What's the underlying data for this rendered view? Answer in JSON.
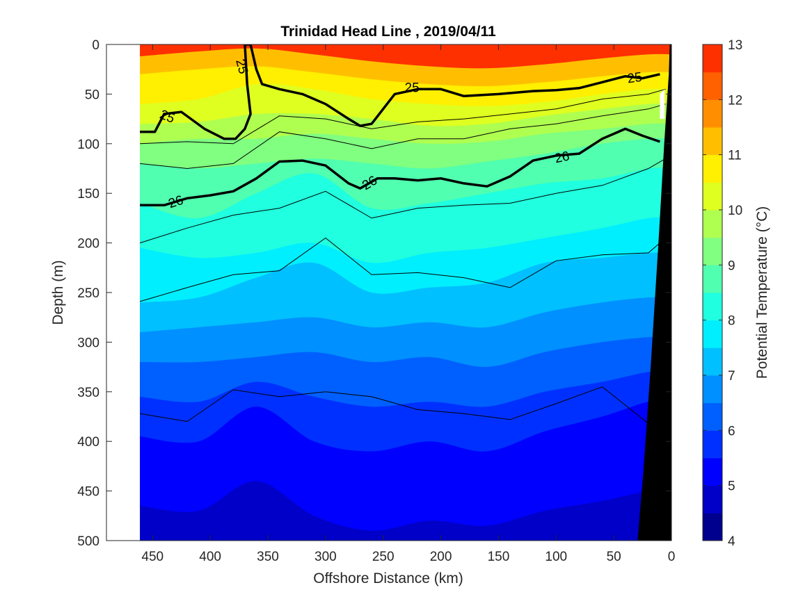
{
  "chart_data": {
    "type": "heatmap",
    "title": "Trinidad Head Line , 2019/04/11",
    "xlabel": "Offshore Distance (km)",
    "ylabel": "Depth (m)",
    "xlim": [
      490,
      0
    ],
    "ylim": [
      500,
      0
    ],
    "x_reversed": true,
    "y_reversed": true,
    "x_ticks": [
      450,
      400,
      350,
      300,
      250,
      200,
      150,
      100,
      50,
      0
    ],
    "y_ticks": [
      0,
      50,
      100,
      150,
      200,
      250,
      300,
      350,
      400,
      450,
      500
    ],
    "data_extent_x": [
      461,
      0
    ],
    "colorbar": {
      "label": "Potential Temperature (°C)",
      "ticks": [
        4,
        5,
        6,
        7,
        8,
        9,
        10,
        11,
        12,
        13
      ],
      "levels": [
        4,
        4.5,
        5,
        5.5,
        6,
        6.5,
        7,
        7.5,
        8,
        8.5,
        9,
        9.5,
        10,
        10.5,
        11,
        11.5,
        12,
        12.5,
        13
      ],
      "colors": [
        "#00008f",
        "#0000c8",
        "#0000ff",
        "#0030ff",
        "#0060ff",
        "#0090ff",
        "#00c0ff",
        "#00efff",
        "#20ffdf",
        "#50ffaf",
        "#80ff80",
        "#afff50",
        "#dfff20",
        "#ffef00",
        "#ffbf00",
        "#ff8f00",
        "#ff6000",
        "#ff3000",
        "#ff0000",
        "#bf0000"
      ]
    },
    "temperature_isotherms": [
      {
        "level": 11,
        "depth": [
          30,
          25,
          22,
          28,
          35,
          40,
          42,
          38,
          32,
          28
        ]
      },
      {
        "level": 10.5,
        "depth": [
          60,
          55,
          40,
          45,
          55,
          60,
          62,
          58,
          50,
          45
        ]
      },
      {
        "level": 10,
        "depth": [
          80,
          78,
          70,
          70,
          75,
          82,
          80,
          72,
          65,
          60
        ]
      },
      {
        "level": 9.5,
        "depth": [
          100,
          95,
          95,
          90,
          95,
          100,
          98,
          90,
          85,
          80
        ]
      },
      {
        "level": 9,
        "depth": [
          120,
          125,
          120,
          115,
          120,
          125,
          118,
          110,
          100,
          95
        ]
      },
      {
        "level": 8.5,
        "depth": [
          160,
          175,
          150,
          130,
          165,
          160,
          150,
          140,
          135,
          125
        ]
      },
      {
        "level": 8,
        "depth": [
          205,
          215,
          210,
          200,
          220,
          210,
          205,
          195,
          185,
          175
        ]
      },
      {
        "level": 7.5,
        "depth": [
          260,
          255,
          235,
          220,
          250,
          245,
          240,
          220,
          215,
          210
        ]
      },
      {
        "level": 7,
        "depth": [
          290,
          285,
          280,
          275,
          285,
          280,
          285,
          270,
          260,
          255
        ]
      },
      {
        "level": 6.5,
        "depth": [
          320,
          320,
          315,
          310,
          320,
          315,
          325,
          310,
          300,
          295
        ]
      },
      {
        "level": 6,
        "depth": [
          355,
          360,
          340,
          355,
          365,
          360,
          365,
          350,
          340,
          330
        ]
      },
      {
        "level": 5.5,
        "depth": [
          395,
          400,
          365,
          400,
          410,
          400,
          410,
          390,
          375,
          360
        ]
      },
      {
        "level": 5,
        "depth": [
          465,
          470,
          440,
          475,
          490,
          480,
          485,
          470,
          460,
          450
        ]
      }
    ],
    "isotherm_x": [
      461,
      410,
      360,
      310,
      260,
      210,
      160,
      110,
      60,
      20
    ],
    "density_contours_bold": [
      {
        "label": "25",
        "x": [
          461,
          448,
          440,
          425,
          405,
          388,
          378,
          370,
          365,
          368,
          370,
          365,
          360,
          355,
          340,
          320,
          300,
          280,
          270,
          260,
          250,
          240,
          220,
          200,
          180,
          150,
          120,
          100,
          80,
          60,
          40,
          25,
          10
        ],
        "depth": [
          88,
          88,
          70,
          68,
          85,
          95,
          95,
          85,
          70,
          40,
          0,
          0,
          25,
          40,
          45,
          50,
          60,
          75,
          82,
          80,
          65,
          50,
          45,
          45,
          52,
          50,
          47,
          46,
          44,
          38,
          32,
          34,
          30
        ]
      },
      {
        "label": "26",
        "x": [
          461,
          440,
          420,
          400,
          380,
          360,
          340,
          320,
          300,
          280,
          270,
          255,
          240,
          220,
          200,
          180,
          160,
          140,
          120,
          100,
          80,
          60,
          40,
          25,
          10
        ],
        "depth": [
          162,
          162,
          155,
          152,
          148,
          135,
          118,
          117,
          122,
          140,
          145,
          135,
          135,
          137,
          135,
          140,
          143,
          133,
          117,
          112,
          110,
          95,
          85,
          92,
          98
        ]
      }
    ],
    "density_contours_thin": [
      {
        "x": [
          461,
          420,
          380,
          340,
          300,
          260,
          220,
          180,
          140,
          100,
          60,
          20,
          5
        ],
        "depth": [
          100,
          98,
          100,
          72,
          75,
          85,
          78,
          75,
          70,
          65,
          55,
          50,
          45
        ]
      },
      {
        "x": [
          461,
          420,
          380,
          340,
          300,
          260,
          220,
          180,
          140,
          100,
          60,
          20,
          5
        ],
        "depth": [
          120,
          125,
          120,
          88,
          95,
          105,
          95,
          95,
          85,
          80,
          72,
          65,
          60
        ]
      },
      {
        "x": [
          461,
          420,
          380,
          340,
          300,
          260,
          220,
          180,
          140,
          100,
          60,
          20,
          5
        ],
        "depth": [
          200,
          185,
          172,
          165,
          148,
          175,
          165,
          162,
          160,
          150,
          142,
          125,
          115
        ]
      },
      {
        "x": [
          461,
          420,
          380,
          340,
          300,
          260,
          220,
          180,
          140,
          100,
          60,
          20,
          5
        ],
        "depth": [
          259,
          245,
          232,
          228,
          195,
          232,
          230,
          235,
          245,
          218,
          212,
          210,
          195
        ]
      },
      {
        "x": [
          461,
          420,
          380,
          340,
          300,
          260,
          220,
          180,
          140,
          100,
          60,
          20,
          5
        ],
        "depth": [
          372,
          380,
          348,
          355,
          350,
          355,
          368,
          372,
          378,
          362,
          345,
          382,
          360
        ]
      }
    ]
  }
}
